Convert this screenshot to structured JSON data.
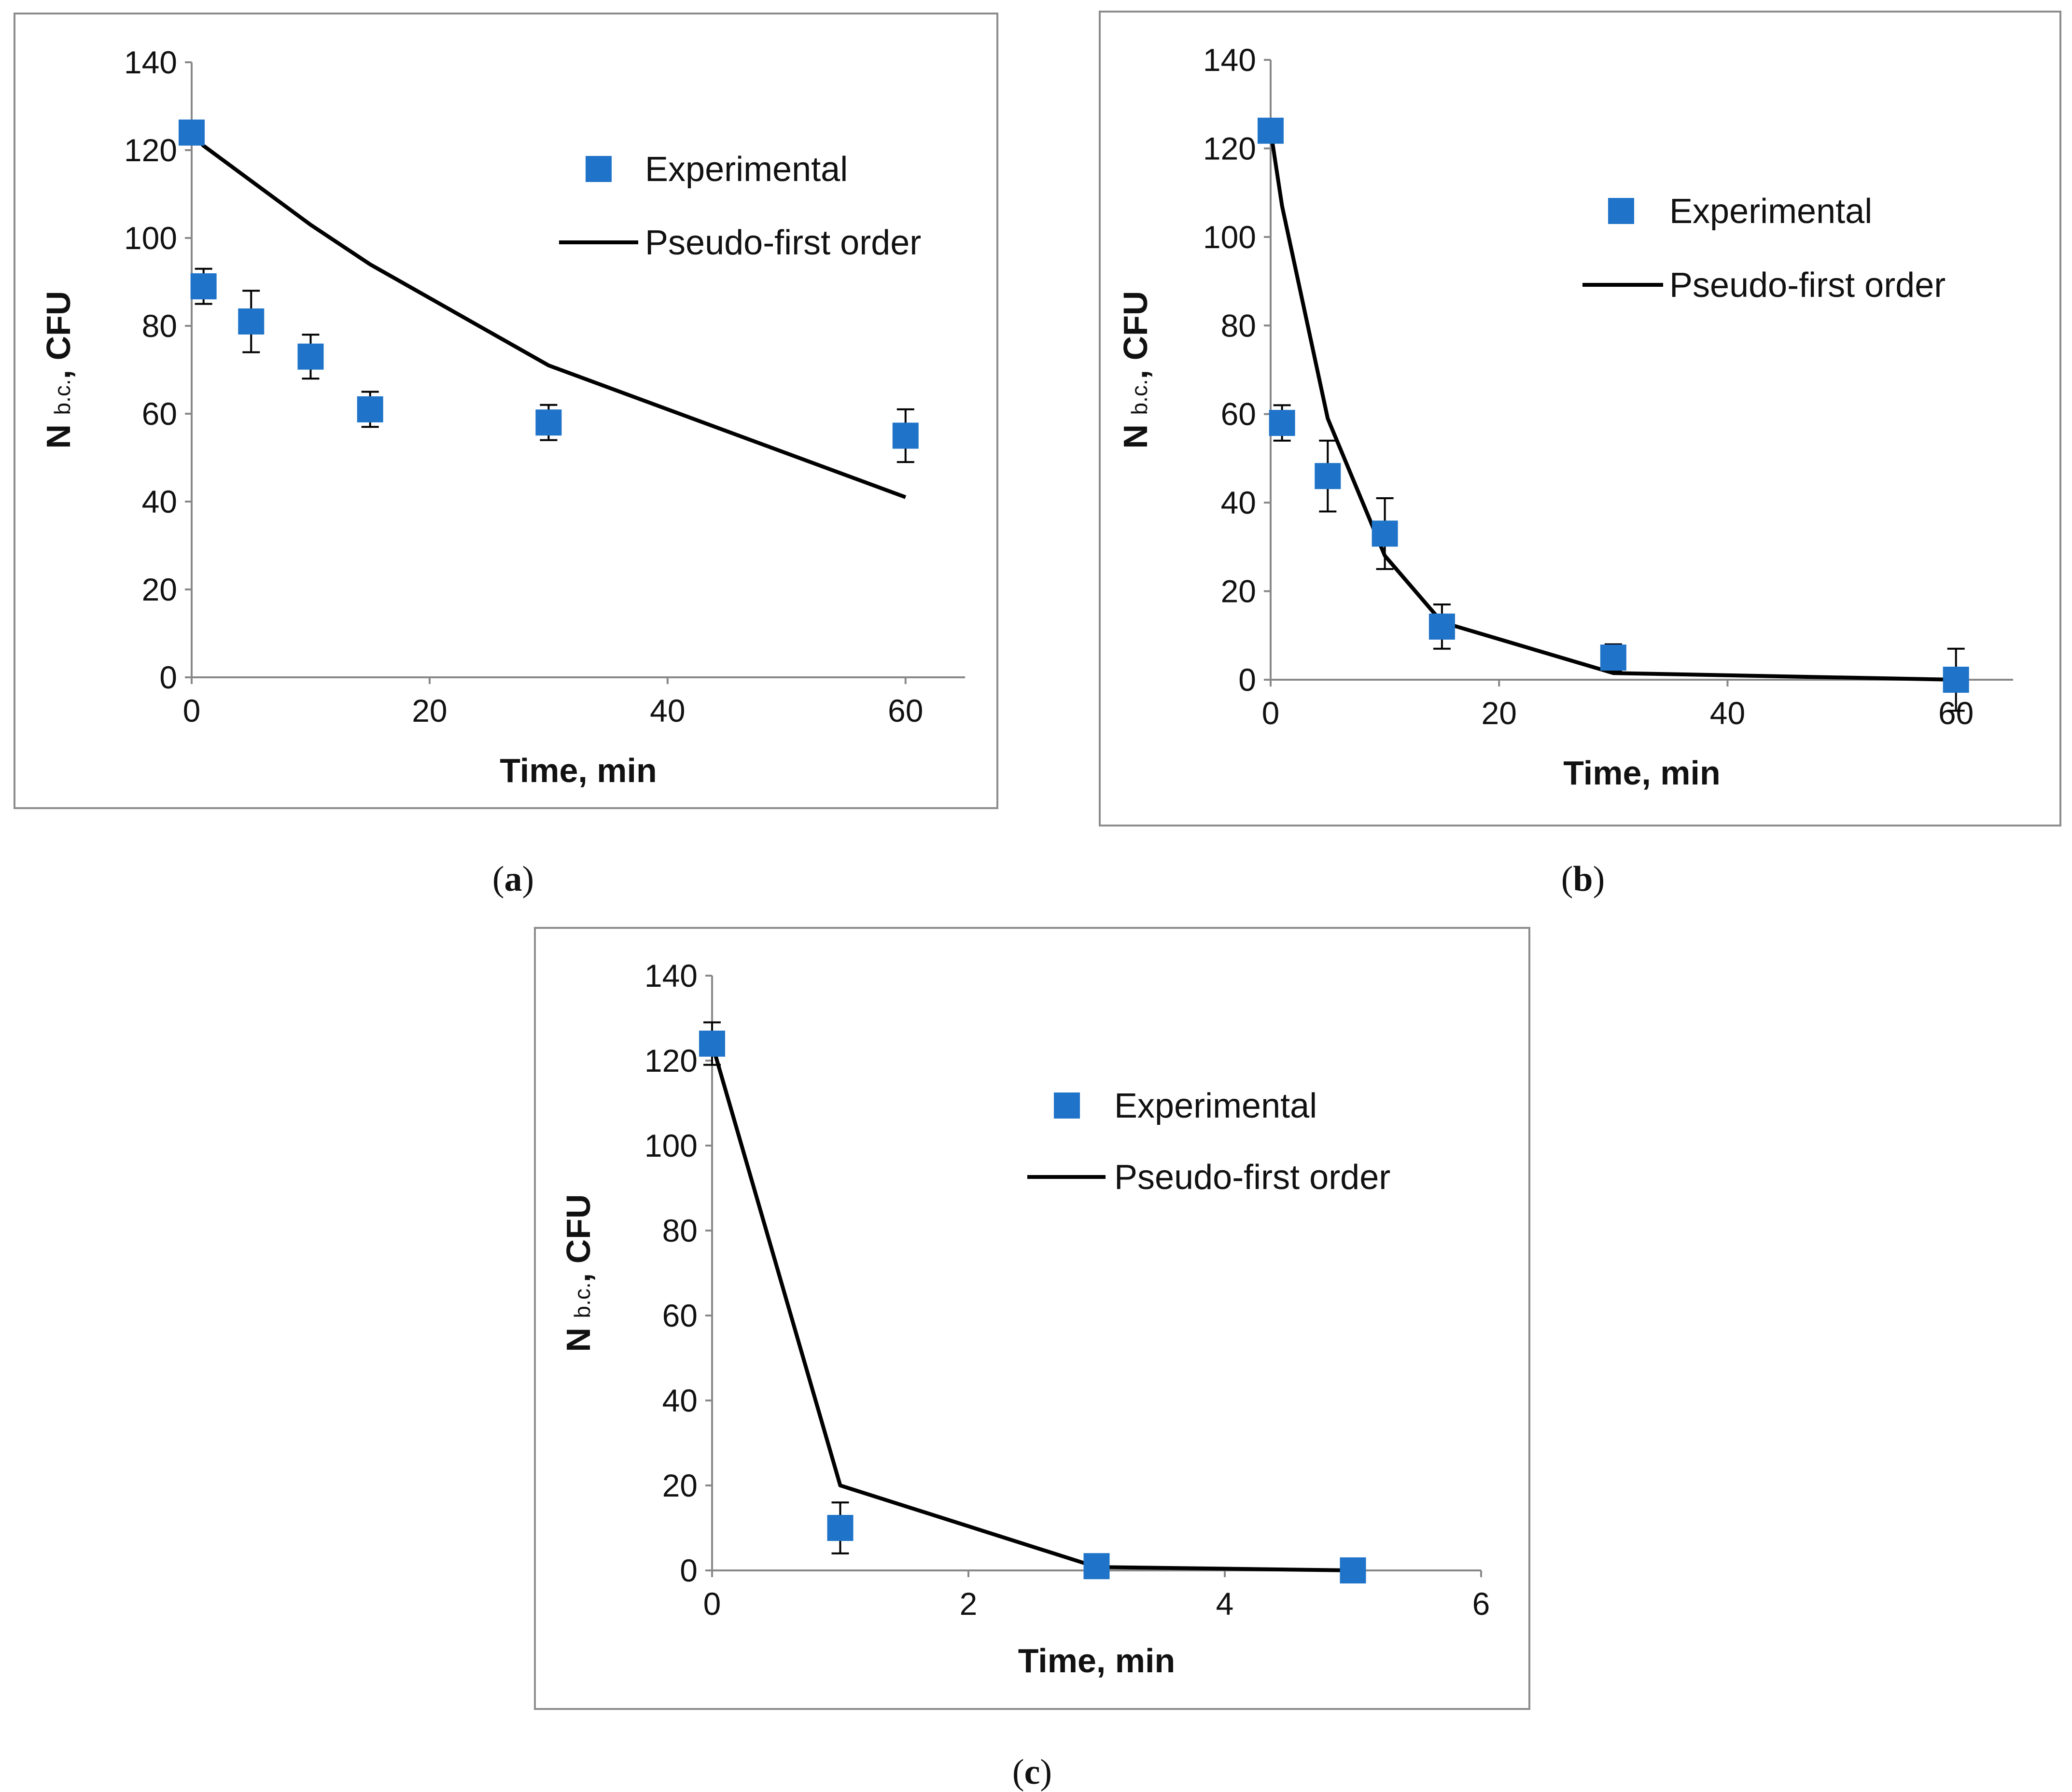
{
  "chart_data": [
    {
      "id": "a",
      "type": "scatter",
      "caption": "a",
      "xlabel": "Time, min",
      "ylabel_main": "N",
      "ylabel_sub": "b.c.",
      "ylabel_unit": ", CFU",
      "xlim": [
        0,
        65
      ],
      "ylim": [
        0,
        140
      ],
      "xticks": [
        0,
        20,
        40,
        60
      ],
      "yticks": [
        0,
        20,
        40,
        60,
        80,
        100,
        120,
        140
      ],
      "legend_position": "top-right",
      "series": [
        {
          "name": "Experimental",
          "kind": "markers",
          "color": "#1f73c8",
          "x": [
            0,
            1,
            5,
            10,
            15,
            30,
            60
          ],
          "y": [
            124,
            89,
            81,
            73,
            61,
            58,
            55
          ],
          "err": [
            0,
            4,
            7,
            5,
            4,
            4,
            6
          ]
        },
        {
          "name": "Pseudo-first order",
          "kind": "line",
          "color": "#000000",
          "x": [
            0,
            1,
            5,
            10,
            15,
            30,
            60
          ],
          "y": [
            124,
            121,
            113,
            103,
            94,
            71,
            41
          ]
        }
      ]
    },
    {
      "id": "b",
      "type": "scatter",
      "caption": "b",
      "xlabel": "Time, min",
      "ylabel_main": "N",
      "ylabel_sub": "b.c.",
      "ylabel_unit": ", CFU",
      "xlim": [
        0,
        65
      ],
      "ylim": [
        0,
        140
      ],
      "xticks": [
        0,
        20,
        40,
        60
      ],
      "yticks": [
        0,
        20,
        40,
        60,
        80,
        100,
        120,
        140
      ],
      "legend_position": "top-right",
      "series": [
        {
          "name": "Experimental",
          "kind": "markers",
          "color": "#1f73c8",
          "x": [
            0,
            1,
            5,
            10,
            15,
            30,
            60
          ],
          "y": [
            124,
            58,
            46,
            33,
            12,
            5,
            0
          ],
          "err": [
            0,
            4,
            8,
            8,
            5,
            3,
            7
          ]
        },
        {
          "name": "Pseudo-first order",
          "kind": "line",
          "color": "#000000",
          "x": [
            0,
            1,
            5,
            10,
            15,
            30,
            60
          ],
          "y": [
            124,
            107,
            59,
            28,
            13,
            1.5,
            0
          ]
        }
      ]
    },
    {
      "id": "c",
      "type": "scatter",
      "caption": "c",
      "xlabel": "Time, min",
      "ylabel_main": "N",
      "ylabel_sub": "b.c.",
      "ylabel_unit": ", CFU",
      "xlim": [
        0,
        6
      ],
      "ylim": [
        0,
        140
      ],
      "xticks": [
        0,
        2,
        4,
        6
      ],
      "yticks": [
        0,
        20,
        40,
        60,
        80,
        100,
        120,
        140
      ],
      "legend_position": "top-right",
      "series": [
        {
          "name": "Experimental",
          "kind": "markers",
          "color": "#1f73c8",
          "x": [
            0,
            1,
            3,
            5
          ],
          "y": [
            124,
            10,
            1,
            0
          ],
          "err": [
            5,
            6,
            0,
            0
          ]
        },
        {
          "name": "Pseudo-first order",
          "kind": "line",
          "color": "#000000",
          "x": [
            0,
            1,
            3,
            5
          ],
          "y": [
            124,
            20,
            0.8,
            0
          ]
        }
      ]
    }
  ]
}
